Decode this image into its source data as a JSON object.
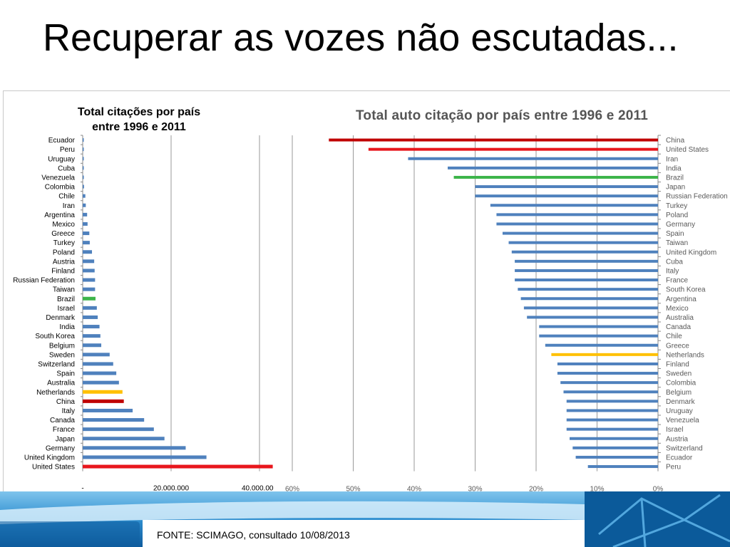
{
  "page": {
    "title": "Recuperar as vozes não escutadas...",
    "source": "FONTE: SCIMAGO, consultado 10/08/2013"
  },
  "colors": {
    "bar_default": "#4f81bd",
    "highlight_red": "#e8161c",
    "highlight_darkred": "#c00000",
    "highlight_green": "#3cb449",
    "highlight_yellow": "#ffc000"
  },
  "chart_data": [
    {
      "type": "bar",
      "orientation": "horizontal",
      "title": "Total citações por país entre 1996 e 2011",
      "title_lines": [
        "Total citações por país",
        "entre 1996 e 2011"
      ],
      "xlim": [
        0,
        40000000
      ],
      "x_ticks": [
        0,
        20000000,
        40000000
      ],
      "x_tick_labels": [
        "-",
        "20.000.000",
        "40.000.000"
      ],
      "grid": true,
      "categories": [
        "Ecuador",
        "Peru",
        "Uruguay",
        "Cuba",
        "Venezuela",
        "Colombia",
        "Chile",
        "Iran",
        "Argentina",
        "Mexico",
        "Greece",
        "Turkey",
        "Poland",
        "Austria",
        "Finland",
        "Russian Federation",
        "Taiwan",
        "Brazil",
        "Israel",
        "Denmark",
        "India",
        "South Korea",
        "Belgium",
        "Sweden",
        "Switzerland",
        "Spain",
        "Australia",
        "Netherlands",
        "China",
        "Italy",
        "Canada",
        "France",
        "Japan",
        "Germany",
        "United Kingdom",
        "United States"
      ],
      "values": [
        100000,
        150000,
        150000,
        200000,
        250000,
        300000,
        600000,
        700000,
        1000000,
        1100000,
        1500000,
        1600000,
        2100000,
        2600000,
        2700000,
        2800000,
        2800000,
        2900000,
        3200000,
        3400000,
        3800000,
        4000000,
        4200000,
        6100000,
        6900000,
        7600000,
        8200000,
        9000000,
        9300000,
        11300000,
        13900000,
        16100000,
        18500000,
        23300000,
        28000000,
        43000000
      ],
      "highlights": {
        "Brazil": "green",
        "Netherlands": "yellow",
        "China": "darkred",
        "United States": "red"
      }
    },
    {
      "type": "bar",
      "orientation": "horizontal",
      "title": "Total auto citação por país entre 1996 e 2011",
      "xlim": [
        0,
        60
      ],
      "x_reversed": true,
      "x_ticks": [
        60,
        50,
        40,
        30,
        20,
        10,
        0
      ],
      "x_tick_labels": [
        "60%",
        "50%",
        "40%",
        "30%",
        "20%",
        "10%",
        "0%"
      ],
      "y_axis_position": "right",
      "grid": true,
      "categories": [
        "China",
        "United States",
        "Iran",
        "India",
        "Brazil",
        "Japan",
        "Russian Federation",
        "Turkey",
        "Poland",
        "Germany",
        "Spain",
        "Taiwan",
        "United Kingdom",
        "Cuba",
        "Italy",
        "France",
        "South Korea",
        "Argentina",
        "Mexico",
        "Australia",
        "Canada",
        "Chile",
        "Greece",
        "Netherlands",
        "Finland",
        "Sweden",
        "Colombia",
        "Belgium",
        "Denmark",
        "Uruguay",
        "Venezuela",
        "Israel",
        "Austria",
        "Switzerland",
        "Ecuador",
        "Peru"
      ],
      "values": [
        54,
        47.5,
        41,
        34.5,
        33.5,
        30,
        30,
        27.5,
        26.5,
        26.5,
        25.5,
        24.5,
        24,
        23.5,
        23.5,
        23.5,
        23,
        22.5,
        22,
        21.5,
        19.5,
        19.5,
        18.5,
        17.5,
        16.5,
        16.5,
        16,
        15.5,
        15,
        15,
        15,
        15,
        14.5,
        14,
        13.5,
        11.5
      ],
      "highlights": {
        "China": "darkred",
        "United States": "red",
        "Brazil": "green",
        "Netherlands": "yellow"
      }
    }
  ]
}
